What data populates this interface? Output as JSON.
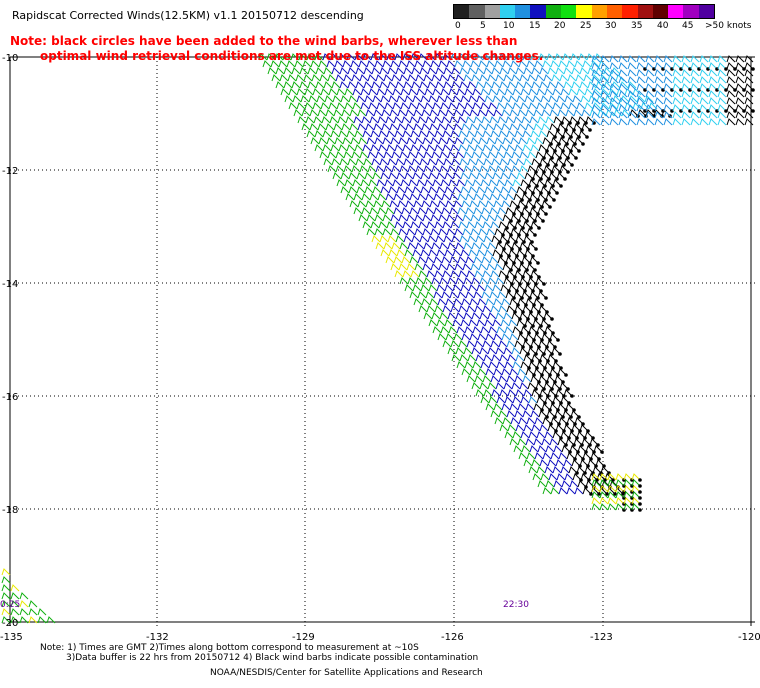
{
  "title": "Rapidscat Corrected Winds(12.5KM) v1.1 20150712 descending",
  "note_line1": "Note: black circles have been added to the wind barbs, wherever less than",
  "note_line2": "optimal wind retrieval conditions are met due to the ISS altitude changes.",
  "legend": {
    "ticks": [
      "0",
      "5",
      "10",
      "15",
      "20",
      "25",
      "30",
      "35",
      "40",
      "45",
      ">50 knots"
    ],
    "colors": [
      "#202020",
      "#606060",
      "#a0a0a0",
      "#30d0f0",
      "#2090e0",
      "#1010c0",
      "#10b010",
      "#10e010",
      "#ffff00",
      "#ffa000",
      "#ff6000",
      "#ff2000",
      "#a01010",
      "#600000",
      "#ff00ff",
      "#a000c0",
      "#5000a0"
    ]
  },
  "axes": {
    "lat_labels": [
      "-10",
      "-12",
      "-14",
      "-16",
      "-18",
      "-20"
    ],
    "lon_labels": [
      "-135",
      "-132",
      "-129",
      "-126",
      "-123",
      "-120"
    ]
  },
  "time_labels": [
    "0:25",
    "22:30"
  ],
  "footer": {
    "line1": "Note: 1) Times are GMT 2)Times along bottom correspond to measurement at ~10S",
    "line2": "3)Data buffer is 22 hrs from 20150712 4) Black wind barbs indicate possible contamination",
    "line3": "NOAA/NESDIS/Center for Satellite Applications and Research"
  },
  "wind_colors": {
    "blue": "#1010c0",
    "mid_blue": "#2090e0",
    "light_blue": "#30d0f0",
    "green": "#10b010",
    "yellow": "#e8e800",
    "black": "#000000"
  }
}
